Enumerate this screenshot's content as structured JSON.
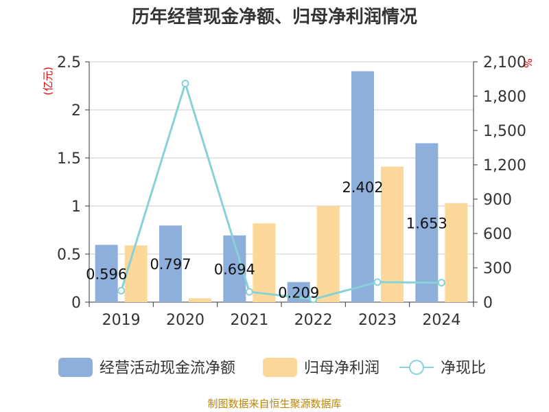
{
  "chart_data": {
    "type": "bar",
    "title": "历年经营现金净额、归母净利润情况",
    "categories": [
      "2019",
      "2020",
      "2021",
      "2022",
      "2023",
      "2024"
    ],
    "series": [
      {
        "name": "经营活动现金流净额",
        "type": "bar",
        "axis": "left",
        "color": "#8eaedb",
        "values": [
          0.596,
          0.797,
          0.694,
          0.209,
          2.402,
          1.653
        ],
        "labels": [
          "0.596",
          "0.797",
          "0.694",
          "0.209",
          "2.402",
          "1.653"
        ]
      },
      {
        "name": "归母净利润",
        "type": "bar",
        "axis": "left",
        "color": "#fdd89b",
        "values": [
          0.59,
          0.04,
          0.82,
          1.0,
          1.41,
          1.03
        ]
      },
      {
        "name": "净现比",
        "type": "line",
        "axis": "right",
        "color": "#86d2d8",
        "values": [
          100,
          1910,
          90,
          25,
          175,
          170
        ]
      }
    ],
    "left_axis": {
      "unit": "(亿元)",
      "ylim": [
        0,
        2.5
      ],
      "ticks": [
        0,
        0.5,
        1,
        1.5,
        2,
        2.5
      ],
      "tick_labels": [
        "0",
        "0.5",
        "1",
        "1.5",
        "2",
        "2.5"
      ]
    },
    "right_axis": {
      "unit": "%",
      "ylim": [
        0,
        2100
      ],
      "ticks": [
        0,
        300,
        600,
        900,
        1200,
        1500,
        1800,
        2100
      ],
      "tick_labels": [
        "0",
        "300",
        "600",
        "900",
        "1,200",
        "1,500",
        "1,800",
        "2,100"
      ]
    },
    "grid": true,
    "legend_position": "bottom"
  },
  "source_note": "制图数据来自恒生聚源数据库"
}
